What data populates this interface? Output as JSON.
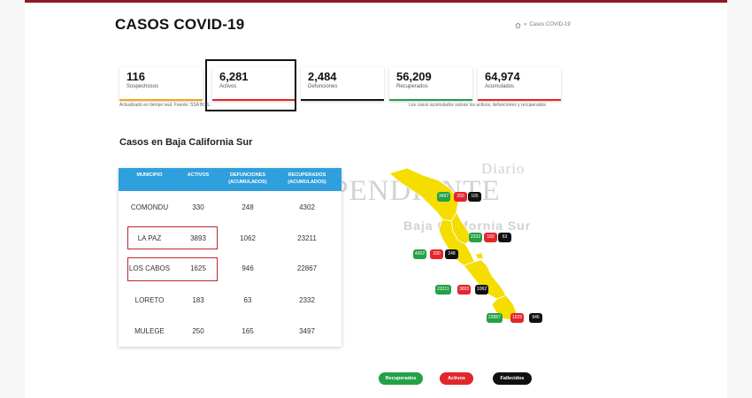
{
  "page_title": "CASOS COVID-19",
  "breadcrumb": {
    "separator": "»",
    "current": "Casos COVID-19"
  },
  "stats": [
    {
      "value": "116",
      "label": "Sospechosos",
      "color": "#f2a71b"
    },
    {
      "value": "6,281",
      "label": "Activos",
      "color": "#e1262c"
    },
    {
      "value": "2,484",
      "label": "Defunciones",
      "color": "#111111"
    },
    {
      "value": "56,209",
      "label": "Recuperados",
      "color": "#24a047"
    },
    {
      "value": "64,974",
      "label": "Acumulados",
      "color": "#e1262c"
    }
  ],
  "notes": {
    "updated": "Actualizado en tiempo real. Fuente: SSA BCS.",
    "accumulated": "Los casos acumulados suman los activos, defunciones y recuperados."
  },
  "section_title": "Casos en Baja California Sur",
  "table": {
    "headers": [
      "MUNICIPIO",
      "ACTIVOS",
      "DEFUNCIONES (ACUMULADOS)",
      "RECUPERADOS (ACUMULADOS)"
    ],
    "rows": [
      {
        "municipio": "COMONDU",
        "activos": "330",
        "defunciones": "248",
        "recuperados": "4302"
      },
      {
        "municipio": "LA PAZ",
        "activos": "3893",
        "defunciones": "1062",
        "recuperados": "23211"
      },
      {
        "municipio": "LOS CABOS",
        "activos": "1625",
        "defunciones": "946",
        "recuperados": "22867"
      },
      {
        "municipio": "LORETO",
        "activos": "183",
        "defunciones": "63",
        "recuperados": "2332"
      },
      {
        "municipio": "MULEGE",
        "activos": "250",
        "defunciones": "165",
        "recuperados": "3497"
      }
    ]
  },
  "watermark": {
    "line1": "Diario",
    "line2": "EL INDEPENDIENTE",
    "line3": "Baja California Sur"
  },
  "map": {
    "fill_color": "#f5dd00",
    "border_color": "#ffffff",
    "labels": [
      {
        "recuperados": "3497",
        "activos": "250",
        "fallecidos": "165"
      },
      {
        "recuperados": "2332",
        "activos": "183",
        "fallecidos": "63"
      },
      {
        "recuperados": "4302",
        "activos": "330",
        "fallecidos": "248"
      },
      {
        "recuperados": "23211",
        "activos": "3893",
        "fallecidos": "1062"
      },
      {
        "recuperados": "22867",
        "activos": "1625",
        "fallecidos": "946"
      }
    ]
  },
  "legend": [
    {
      "label": "Recuperados",
      "color": "#24a047"
    },
    {
      "label": "Activos",
      "color": "#e1262c"
    },
    {
      "label": "Fallecidos",
      "color": "#111111"
    }
  ]
}
